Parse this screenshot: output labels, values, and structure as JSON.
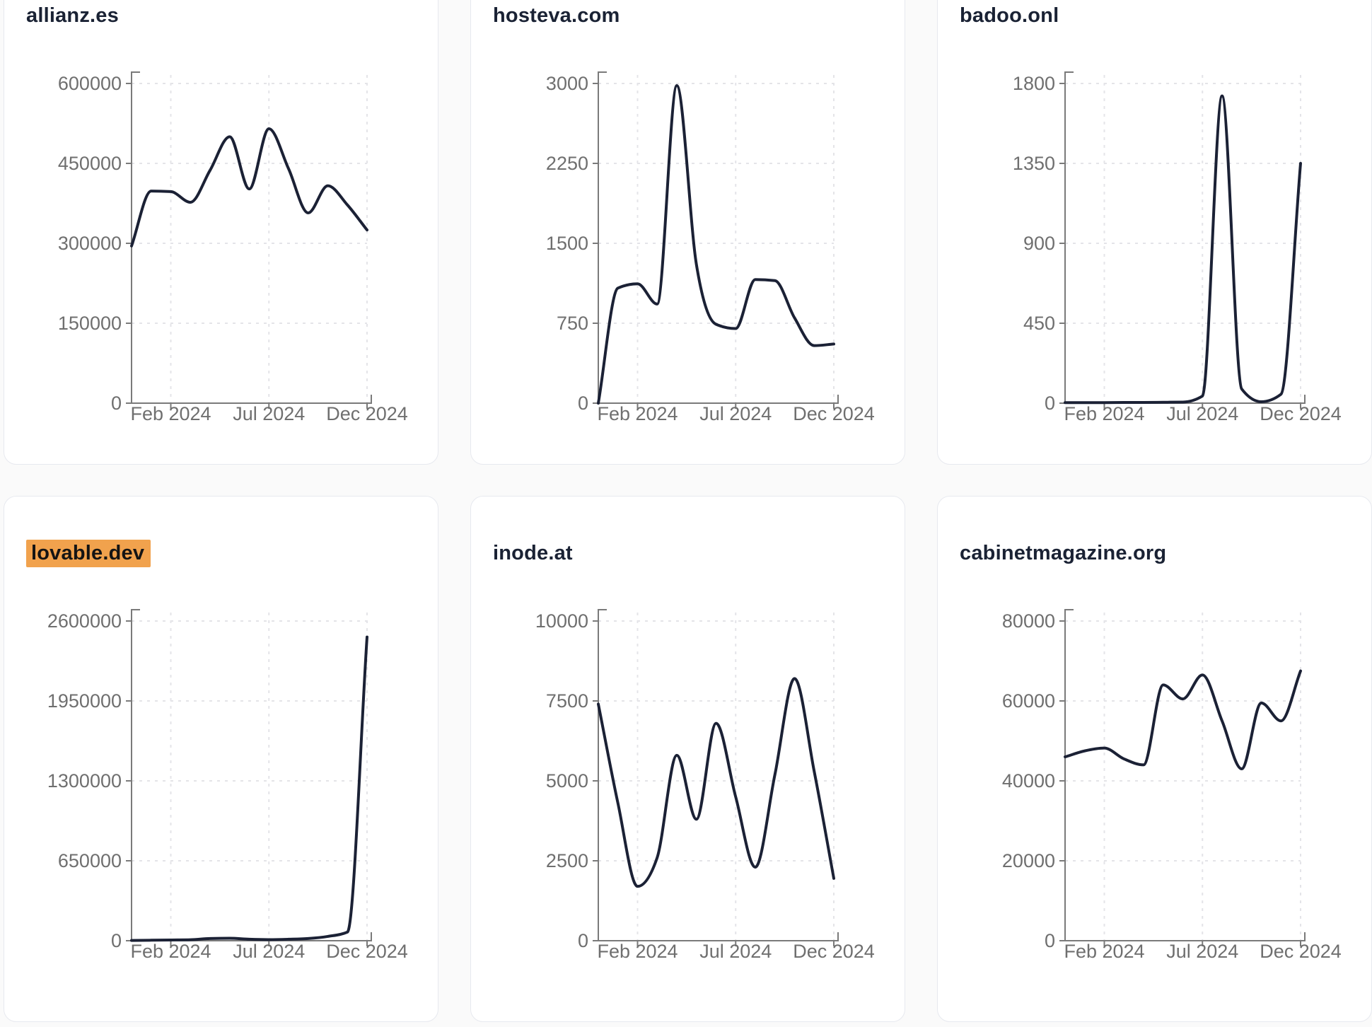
{
  "page": {
    "background": "#fafafa",
    "card_background": "#ffffff",
    "card_border_color": "#e7e9ef",
    "title_color": "#1a2234",
    "axis_text_color": "#6f6f6f",
    "axis_line_color": "#7a7a7a",
    "grid_color": "#e4e4e8",
    "line_color": "#1b2135",
    "highlight_color": "#f1a24d"
  },
  "chart_data": [
    {
      "type": "line",
      "title": "allianz.es",
      "highlighted": false,
      "x": [
        "Dec 2023",
        "Jan 2024",
        "Feb 2024",
        "Mar 2024",
        "Apr 2024",
        "May 2024",
        "Jun 2024",
        "Jul 2024",
        "Aug 2024",
        "Sep 2024",
        "Oct 2024",
        "Nov 2024",
        "Dec 2024"
      ],
      "values": [
        295000,
        398000,
        397000,
        377000,
        437000,
        500000,
        402000,
        515000,
        440000,
        357000,
        408000,
        372000,
        325000
      ],
      "ylim": [
        0,
        600000
      ],
      "y_ticks": [
        0,
        150000,
        300000,
        450000,
        600000
      ],
      "x_ticks": [
        {
          "label": "Feb 2024",
          "index": 2
        },
        {
          "label": "Jul 2024",
          "index": 7
        },
        {
          "label": "Dec 2024",
          "index": 12
        }
      ],
      "grid": true,
      "legend": "none"
    },
    {
      "type": "line",
      "title": "hosteva.com",
      "highlighted": false,
      "x": [
        "Dec 2023",
        "Jan 2024",
        "Feb 2024",
        "Mar 2024",
        "Apr 2024",
        "May 2024",
        "Jun 2024",
        "Jul 2024",
        "Aug 2024",
        "Sep 2024",
        "Oct 2024",
        "Nov 2024",
        "Dec 2024"
      ],
      "values": [
        0,
        1080,
        1120,
        930,
        2980,
        1300,
        740,
        700,
        1160,
        1150,
        800,
        540,
        555
      ],
      "ylim": [
        0,
        3000
      ],
      "y_ticks": [
        0,
        750,
        1500,
        2250,
        3000
      ],
      "x_ticks": [
        {
          "label": "Feb 2024",
          "index": 2
        },
        {
          "label": "Jul 2024",
          "index": 7
        },
        {
          "label": "Dec 2024",
          "index": 12
        }
      ],
      "grid": true,
      "legend": "none"
    },
    {
      "type": "line",
      "title": "badoo.onl",
      "highlighted": false,
      "x": [
        "Dec 2023",
        "Jan 2024",
        "Feb 2024",
        "Mar 2024",
        "Apr 2024",
        "May 2024",
        "Jun 2024",
        "Jul 2024",
        "Aug 2024",
        "Sep 2024",
        "Oct 2024",
        "Nov 2024",
        "Dec 2024"
      ],
      "values": [
        3,
        3,
        3,
        4,
        4,
        5,
        6,
        40,
        1730,
        80,
        8,
        50,
        1350
      ],
      "ylim": [
        0,
        1800
      ],
      "y_ticks": [
        0,
        450,
        900,
        1350,
        1800
      ],
      "x_ticks": [
        {
          "label": "Feb 2024",
          "index": 2
        },
        {
          "label": "Jul 2024",
          "index": 7
        },
        {
          "label": "Dec 2024",
          "index": 12
        }
      ],
      "grid": true,
      "legend": "none"
    },
    {
      "type": "line",
      "title": "lovable.dev",
      "highlighted": true,
      "x": [
        "Dec 2023",
        "Jan 2024",
        "Feb 2024",
        "Mar 2024",
        "Apr 2024",
        "May 2024",
        "Jun 2024",
        "Jul 2024",
        "Aug 2024",
        "Sep 2024",
        "Oct 2024",
        "Nov 2024",
        "Dec 2024"
      ],
      "values": [
        2000,
        4000,
        6000,
        8000,
        18000,
        20000,
        12000,
        9000,
        12000,
        18000,
        35000,
        70000,
        2470000
      ],
      "ylim": [
        0,
        2600000
      ],
      "y_ticks": [
        0,
        650000,
        1300000,
        1950000,
        2600000
      ],
      "x_ticks": [
        {
          "label": "Feb 2024",
          "index": 2
        },
        {
          "label": "Jul 2024",
          "index": 7
        },
        {
          "label": "Dec 2024",
          "index": 12
        }
      ],
      "grid": true,
      "legend": "none"
    },
    {
      "type": "line",
      "title": "inode.at",
      "highlighted": false,
      "x": [
        "Dec 2023",
        "Jan 2024",
        "Feb 2024",
        "Mar 2024",
        "Apr 2024",
        "May 2024",
        "Jun 2024",
        "Jul 2024",
        "Aug 2024",
        "Sep 2024",
        "Oct 2024",
        "Nov 2024",
        "Dec 2024"
      ],
      "values": [
        7400,
        4300,
        1700,
        2600,
        5800,
        3800,
        6800,
        4500,
        2300,
        5200,
        8200,
        5300,
        1950
      ],
      "ylim": [
        0,
        10000
      ],
      "y_ticks": [
        0,
        2500,
        5000,
        7500,
        10000
      ],
      "x_ticks": [
        {
          "label": "Feb 2024",
          "index": 2
        },
        {
          "label": "Jul 2024",
          "index": 7
        },
        {
          "label": "Dec 2024",
          "index": 12
        }
      ],
      "grid": true,
      "legend": "none"
    },
    {
      "type": "line",
      "title": "cabinetmagazine.org",
      "highlighted": false,
      "x": [
        "Dec 2023",
        "Jan 2024",
        "Feb 2024",
        "Mar 2024",
        "Apr 2024",
        "May 2024",
        "Jun 2024",
        "Jul 2024",
        "Aug 2024",
        "Sep 2024",
        "Oct 2024",
        "Nov 2024",
        "Dec 2024"
      ],
      "values": [
        46000,
        47500,
        48200,
        45500,
        44000,
        64000,
        60500,
        66500,
        55000,
        43000,
        59500,
        55000,
        67500
      ],
      "ylim": [
        0,
        80000
      ],
      "y_ticks": [
        0,
        20000,
        40000,
        60000,
        80000
      ],
      "x_ticks": [
        {
          "label": "Feb 2024",
          "index": 2
        },
        {
          "label": "Jul 2024",
          "index": 7
        },
        {
          "label": "Dec 2024",
          "index": 12
        }
      ],
      "grid": true,
      "legend": "none"
    }
  ]
}
